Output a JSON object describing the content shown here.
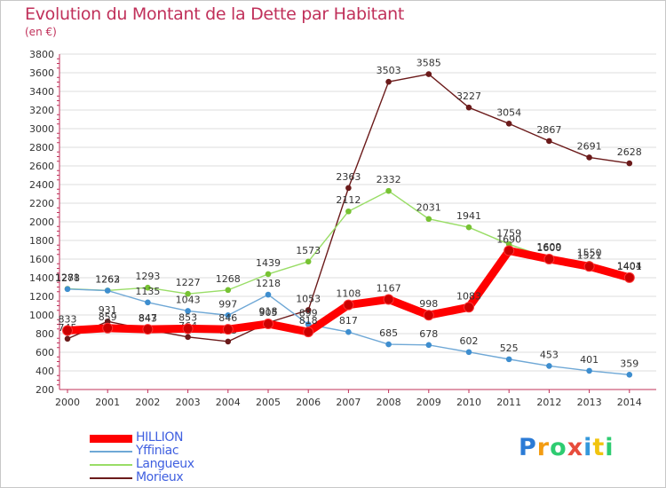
{
  "chart_data": {
    "type": "line",
    "title": "Evolution du Montant de la Dette par Habitant",
    "subtitle": "(en €)",
    "xlabel": "",
    "ylabel": "",
    "x": [
      "2000",
      "2001",
      "2002",
      "2003",
      "2004",
      "2005",
      "2006",
      "2007",
      "2008",
      "2009",
      "2010",
      "2011",
      "2012",
      "2013",
      "2014"
    ],
    "ylim": [
      200,
      3800
    ],
    "yticks": [
      "200",
      "400",
      "600",
      "800",
      "1000",
      "1200",
      "1400",
      "1600",
      "1800",
      "2000",
      "2200",
      "2400",
      "2600",
      "2800",
      "3000",
      "3200",
      "3400",
      "3600",
      "3800"
    ],
    "grid": true,
    "legend_position": "bottom-left",
    "series": [
      {
        "name": "Morieux",
        "color": "#6b1a1a",
        "marker": "#6b1a1a",
        "width": "thin",
        "values": [
          745,
          931,
          843,
          764,
          715,
          918,
          1053,
          2363,
          3503,
          3585,
          3227,
          3054,
          2867,
          2691,
          2628
        ]
      },
      {
        "name": "Langueux",
        "color": "#99dd66",
        "marker": "#77c233",
        "width": "thin",
        "values": [
          1281,
          1263,
          1293,
          1227,
          1268,
          1439,
          1573,
          2112,
          2332,
          2031,
          1941,
          1759,
          1609,
          1550,
          1404
        ]
      },
      {
        "name": "Yffiniac",
        "color": "#6fa8d6",
        "marker": "#3e8ecf",
        "width": "thin",
        "values": [
          1278,
          1262,
          1135,
          1043,
          997,
          1218,
          899,
          817,
          685,
          678,
          602,
          525,
          453,
          401,
          359
        ]
      },
      {
        "name": "HILLION",
        "color": "#ff0000",
        "marker": "#cc0000",
        "width": "thick",
        "values": [
          833,
          859,
          847,
          853,
          846,
          905,
          818,
          1108,
          1167,
          998,
          1083,
          1690,
          1600,
          1521,
          1401
        ]
      }
    ],
    "legend_order": [
      "HILLION",
      "Yffiniac",
      "Langueux",
      "Morieux"
    ]
  },
  "logo": {
    "letters": [
      "P",
      "r",
      "o",
      "x",
      "i",
      "t",
      "i"
    ],
    "colors": [
      "#2b7bd6",
      "#f39c12",
      "#2ecc71",
      "#e74c3c",
      "#3498db",
      "#f1c40f",
      "#2ecc71"
    ]
  }
}
